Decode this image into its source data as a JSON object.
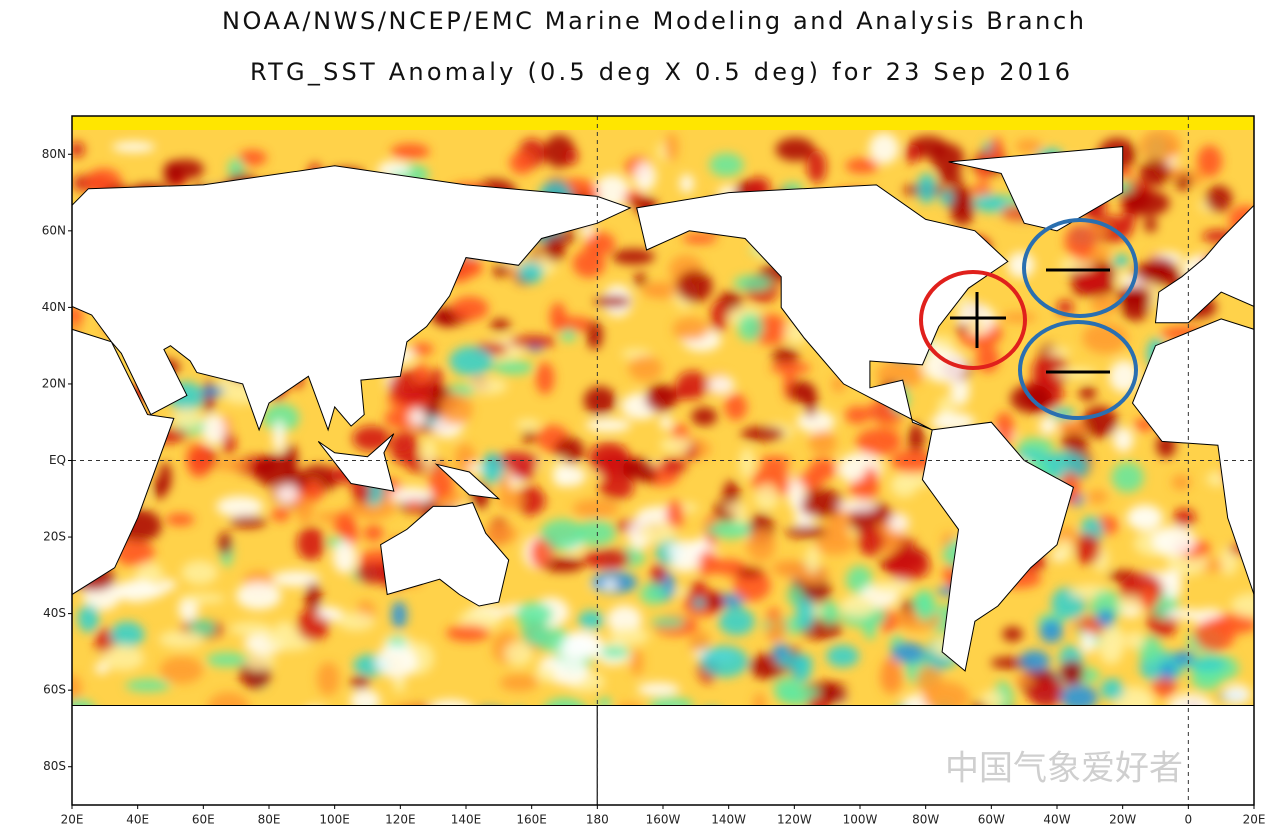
{
  "header": {
    "title": "NOAA/NWS/NCEP/EMC Marine Modeling and Analysis Branch",
    "subtitle": "RTG_SST Anomaly (0.5 deg X 0.5 deg) for 23 Sep 2016"
  },
  "map": {
    "lat_ticks": [
      {
        "value": 80,
        "label": "80N"
      },
      {
        "value": 60,
        "label": "60N"
      },
      {
        "value": 40,
        "label": "40N"
      },
      {
        "value": 20,
        "label": "20N"
      },
      {
        "value": 0,
        "label": "EQ"
      },
      {
        "value": -20,
        "label": "20S"
      },
      {
        "value": -40,
        "label": "40S"
      },
      {
        "value": -60,
        "label": "60S"
      },
      {
        "value": -80,
        "label": "80S"
      }
    ],
    "lon_ticks": [
      {
        "value": 20,
        "label": "20E"
      },
      {
        "value": 40,
        "label": "40E"
      },
      {
        "value": 60,
        "label": "60E"
      },
      {
        "value": 80,
        "label": "80E"
      },
      {
        "value": 100,
        "label": "100E"
      },
      {
        "value": 120,
        "label": "120E"
      },
      {
        "value": 140,
        "label": "140E"
      },
      {
        "value": 160,
        "label": "160E"
      },
      {
        "value": 180,
        "label": "180"
      },
      {
        "value": 200,
        "label": "160W"
      },
      {
        "value": 220,
        "label": "140W"
      },
      {
        "value": 240,
        "label": "120W"
      },
      {
        "value": 260,
        "label": "100W"
      },
      {
        "value": 280,
        "label": "80W"
      },
      {
        "value": 300,
        "label": "60W"
      },
      {
        "value": 320,
        "label": "40W"
      },
      {
        "value": 340,
        "label": "20W"
      },
      {
        "value": 360,
        "label": "0"
      },
      {
        "value": 380,
        "label": "20E"
      }
    ]
  },
  "watermark": "中国气象爱好者"
}
